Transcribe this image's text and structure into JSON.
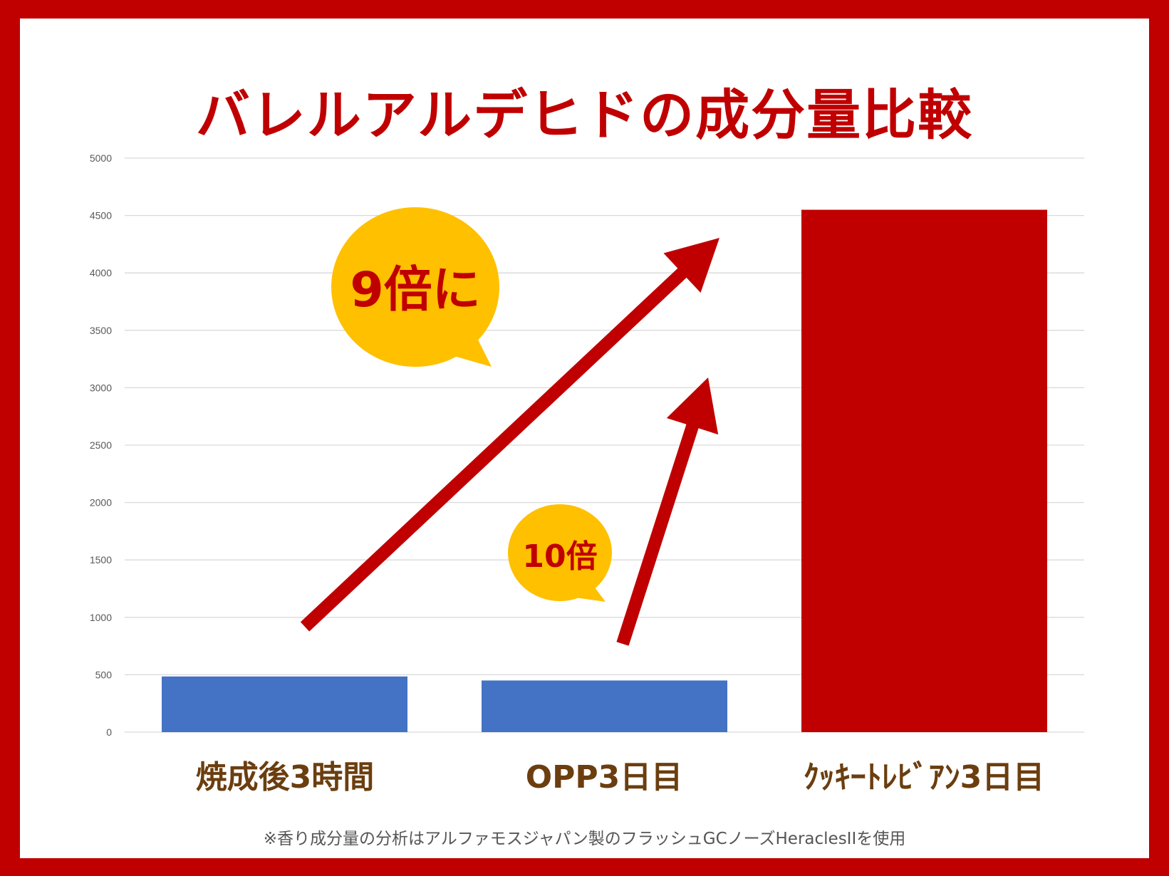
{
  "chart_data": {
    "type": "bar",
    "title": "バレルアルデヒドの成分量比較",
    "categories": [
      "焼成後3時間",
      "OPP3日目",
      "ｸｯｷｰﾄﾚﾋﾞｱﾝ3日目"
    ],
    "values": [
      485,
      450,
      4550
    ],
    "bar_colors": [
      "#4472C4",
      "#4472C4",
      "#C00000"
    ],
    "ylim": [
      0,
      5000
    ],
    "yticks": [
      0,
      500,
      1000,
      1500,
      2000,
      2500,
      3000,
      3500,
      4000,
      4500,
      5000
    ],
    "grid": true,
    "annotations": [
      {
        "text": "9倍に",
        "from_category": 0,
        "to_category": 2
      },
      {
        "text": "10倍",
        "from_category": 1,
        "to_category": 2
      }
    ],
    "note": "※香り成分量の分析はアルファモスジャパン製のフラッシュGCノーズHeraclesIIを使用"
  },
  "colors": {
    "frame": "#C00000",
    "accent": "#C00000",
    "bubble": "#FFC000",
    "bubble_text": "#C00000",
    "category_text": "#6B3E0F"
  }
}
